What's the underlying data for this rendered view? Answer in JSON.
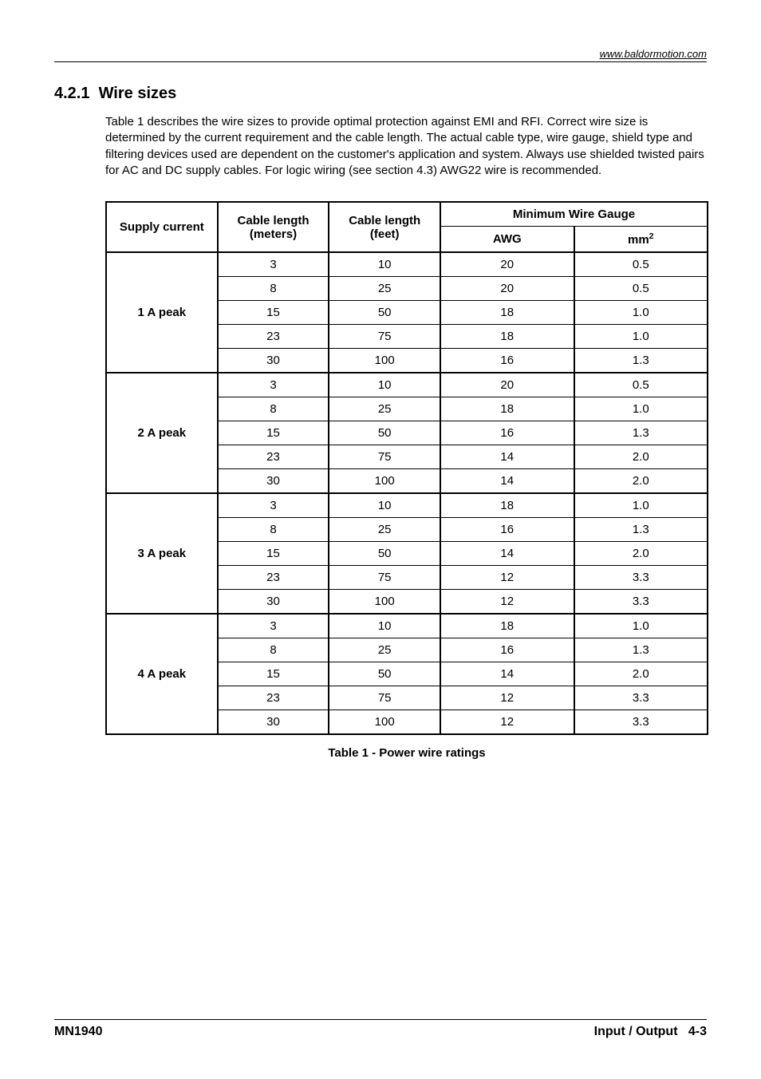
{
  "header": {
    "url": "www.baldormotion.com"
  },
  "section": {
    "number": "4.2.1",
    "title": "Wire sizes",
    "paragraph": "Table 1 describes the wire sizes to provide optimal protection against EMI and RFI. Correct wire size is determined by the current requirement and the cable length. The actual cable type, wire gauge, shield type and filtering devices used are dependent on the customer's application and system. Always use shielded twisted pairs for AC and DC supply cables. For logic wiring (see section 4.3) AWG22 wire is recommended."
  },
  "table": {
    "caption": "Table 1 - Power wire ratings",
    "headers": {
      "supply": "Supply current",
      "meters": "Cable length (meters)",
      "feet": "Cable length (feet)",
      "min_gauge": "Minimum Wire Gauge",
      "awg": "AWG",
      "mm2": "mm",
      "mm2_sup": "2"
    },
    "groups": [
      {
        "label": "1 A peak",
        "rows": [
          {
            "m": "3",
            "ft": "10",
            "awg": "20",
            "mm2": "0.5"
          },
          {
            "m": "8",
            "ft": "25",
            "awg": "20",
            "mm2": "0.5"
          },
          {
            "m": "15",
            "ft": "50",
            "awg": "18",
            "mm2": "1.0"
          },
          {
            "m": "23",
            "ft": "75",
            "awg": "18",
            "mm2": "1.0"
          },
          {
            "m": "30",
            "ft": "100",
            "awg": "16",
            "mm2": "1.3"
          }
        ]
      },
      {
        "label": "2 A peak",
        "rows": [
          {
            "m": "3",
            "ft": "10",
            "awg": "20",
            "mm2": "0.5"
          },
          {
            "m": "8",
            "ft": "25",
            "awg": "18",
            "mm2": "1.0"
          },
          {
            "m": "15",
            "ft": "50",
            "awg": "16",
            "mm2": "1.3"
          },
          {
            "m": "23",
            "ft": "75",
            "awg": "14",
            "mm2": "2.0"
          },
          {
            "m": "30",
            "ft": "100",
            "awg": "14",
            "mm2": "2.0"
          }
        ]
      },
      {
        "label": "3 A peak",
        "rows": [
          {
            "m": "3",
            "ft": "10",
            "awg": "18",
            "mm2": "1.0"
          },
          {
            "m": "8",
            "ft": "25",
            "awg": "16",
            "mm2": "1.3"
          },
          {
            "m": "15",
            "ft": "50",
            "awg": "14",
            "mm2": "2.0"
          },
          {
            "m": "23",
            "ft": "75",
            "awg": "12",
            "mm2": "3.3"
          },
          {
            "m": "30",
            "ft": "100",
            "awg": "12",
            "mm2": "3.3"
          }
        ]
      },
      {
        "label": "4 A peak",
        "rows": [
          {
            "m": "3",
            "ft": "10",
            "awg": "18",
            "mm2": "1.0"
          },
          {
            "m": "8",
            "ft": "25",
            "awg": "16",
            "mm2": "1.3"
          },
          {
            "m": "15",
            "ft": "50",
            "awg": "14",
            "mm2": "2.0"
          },
          {
            "m": "23",
            "ft": "75",
            "awg": "12",
            "mm2": "3.3"
          },
          {
            "m": "30",
            "ft": "100",
            "awg": "12",
            "mm2": "3.3"
          }
        ]
      }
    ]
  },
  "footer": {
    "left": "MN1940",
    "right_label": "Input / Output",
    "right_page": "4-3"
  }
}
